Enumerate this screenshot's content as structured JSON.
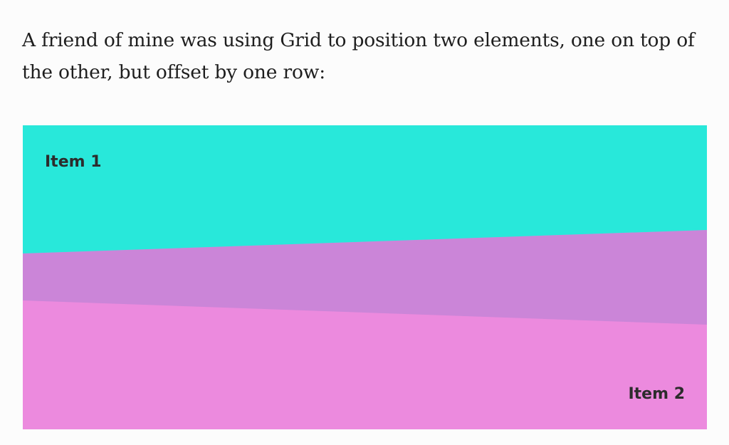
{
  "article": {
    "paragraph": "A friend of mine was using Grid to position two elements, one on top of the other, but offset by one row:"
  },
  "demo": {
    "item1": {
      "label": "Item 1",
      "color": "#28e8da"
    },
    "item2": {
      "label": "Item 2",
      "color": "#ec8ade"
    },
    "overlap_color": "#cb85d8"
  }
}
